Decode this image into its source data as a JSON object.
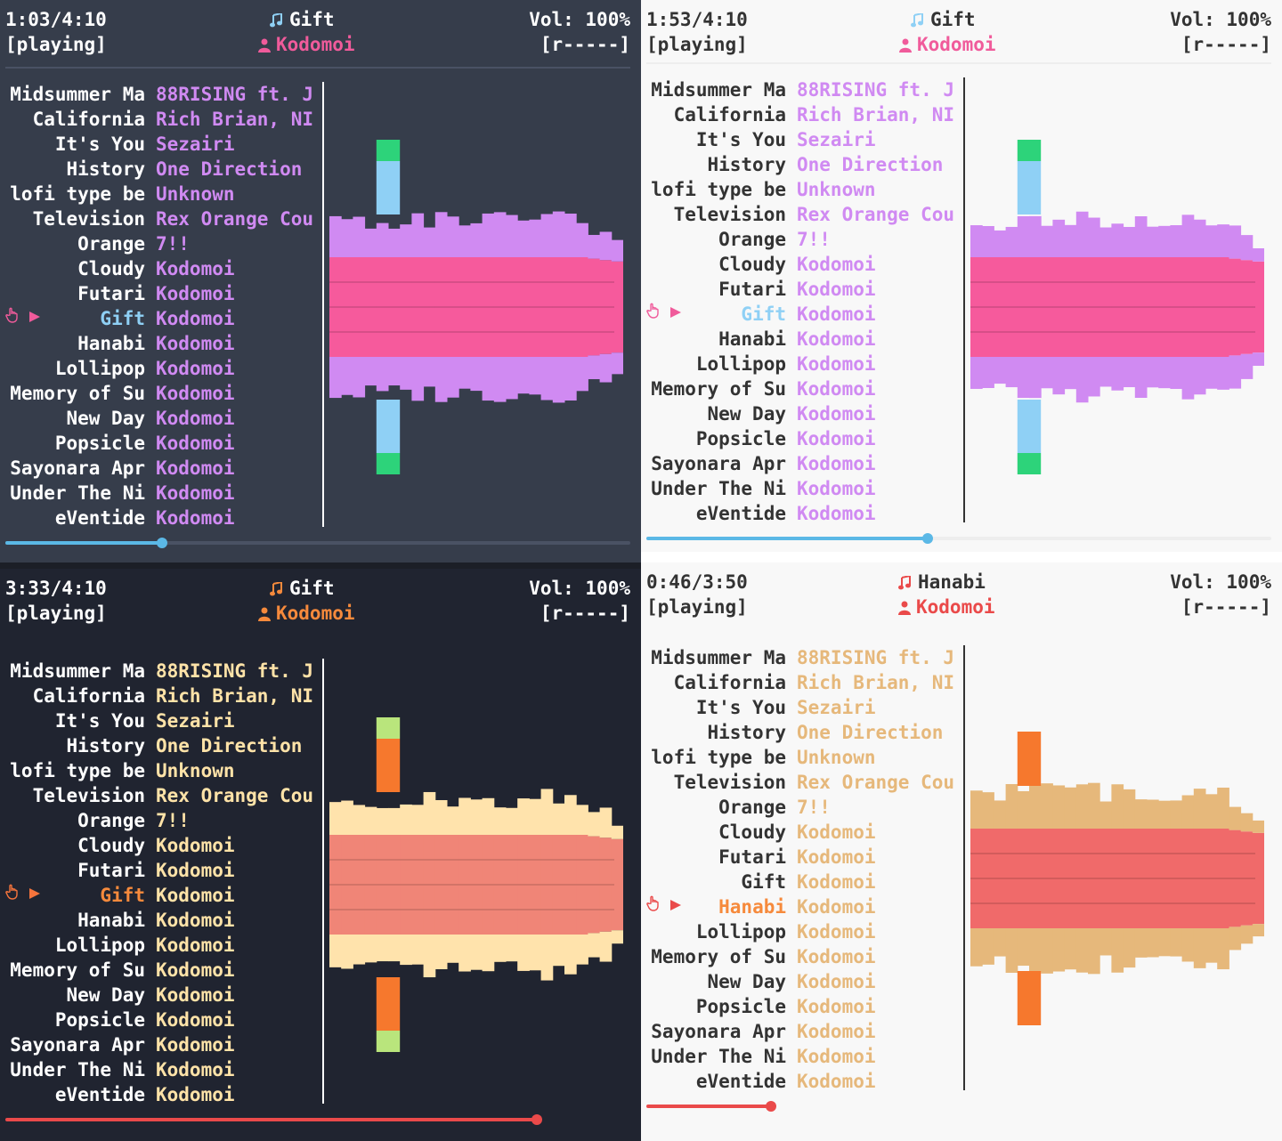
{
  "panels": [
    {
      "id": "tl",
      "theme": {
        "bg": "#363d4b",
        "text": "#ffffff",
        "accent": "#d08af2",
        "current": "#8fd0f5",
        "indicator": "#f05b9b",
        "note": "#8fd0f5",
        "artistHeader": "#f05b9b",
        "line": "#ffffff",
        "progress": "#5bb8e6",
        "track": "#4a5264",
        "divider": "#4a5264"
      },
      "header": {
        "time": "1:03/4:10",
        "state": "[playing]",
        "title": "Gift",
        "artist": "Kodomoi",
        "volume": "Vol: 100%",
        "mode": "[r-----]"
      },
      "progress": 0.25,
      "currentIndex": 9,
      "viz": {
        "mid": "#f65a9c",
        "outer": "#d08af2",
        "spike": "#8fd0f5",
        "peak": "#2dd37a"
      }
    },
    {
      "id": "tr",
      "theme": {
        "bg": "#f8f8f8",
        "text": "#333333",
        "accent": "#d08af2",
        "current": "#8fd0f5",
        "indicator": "#f05b9b",
        "note": "#8fd0f5",
        "artistHeader": "#f05b9b",
        "line": "#333333",
        "progress": "#5bb8e6",
        "track": "#eeeeee",
        "divider": "#eeeeee"
      },
      "header": {
        "time": "1:53/4:10",
        "state": "[playing]",
        "title": "Gift",
        "artist": "Kodomoi",
        "volume": "Vol: 100%",
        "mode": "[r-----]"
      },
      "progress": 0.45,
      "currentIndex": 9,
      "viz": {
        "mid": "#f65a9c",
        "outer": "#d08af2",
        "spike": "#8fd0f5",
        "peak": "#2dd37a"
      }
    },
    {
      "id": "bl",
      "theme": {
        "bg": "#202430",
        "text": "#ffffff",
        "accent": "#ffe3a8",
        "current": "#f68a3c",
        "indicator": "#f6743c",
        "note": "#f68a3c",
        "artistHeader": "#f68a3c",
        "line": "#ffffff",
        "progress": "#ea4a4a",
        "track": "#202430",
        "divider": "#202430"
      },
      "header": {
        "time": "3:33/4:10",
        "state": "[playing]",
        "title": "Gift",
        "artist": "Kodomoi",
        "volume": "Vol: 100%",
        "mode": "[r-----]"
      },
      "progress": 0.85,
      "currentIndex": 9,
      "viz": {
        "mid": "#f08577",
        "outer": "#ffe3ac",
        "spike": "#f6782d",
        "peak": "#b9e57c"
      }
    },
    {
      "id": "br",
      "theme": {
        "bg": "#f8f8f8",
        "text": "#333333",
        "accent": "#e6b87b",
        "current": "#f68a3c",
        "indicator": "#ea4a4a",
        "note": "#ea4a4a",
        "artistHeader": "#ea4a4a",
        "line": "#333333",
        "progress": "#ea4a4a",
        "track": "#f8f8f8",
        "divider": "#f8f8f8"
      },
      "header": {
        "time": "0:46/3:50",
        "state": "[playing]",
        "title": "Hanabi",
        "artist": "Kodomoi",
        "volume": "Vol: 100%",
        "mode": "[r-----]"
      },
      "progress": 0.2,
      "currentIndex": 10,
      "viz": {
        "mid": "#f06a6a",
        "outer": "#e6b87b",
        "spike": "#f6782d",
        "peak": "#f6782d"
      }
    }
  ],
  "playlist": [
    {
      "title": "Midsummer Ma",
      "artist": "88RISING ft. J"
    },
    {
      "title": "California",
      "artist": "Rich Brian, NI"
    },
    {
      "title": "It's You",
      "artist": "Sezairi"
    },
    {
      "title": "History",
      "artist": "One Direction"
    },
    {
      "title": "lofi type be",
      "artist": "Unknown"
    },
    {
      "title": "Television",
      "artist": "Rex Orange Cou"
    },
    {
      "title": "Orange",
      "artist": "7!!"
    },
    {
      "title": "Cloudy",
      "artist": "Kodomoi"
    },
    {
      "title": "Futari",
      "artist": "Kodomoi"
    },
    {
      "title": "Gift",
      "artist": "Kodomoi"
    },
    {
      "title": "Hanabi",
      "artist": "Kodomoi"
    },
    {
      "title": "Lollipop",
      "artist": "Kodomoi"
    },
    {
      "title": "Memory of Su",
      "artist": "Kodomoi"
    },
    {
      "title": "New Day",
      "artist": "Kodomoi"
    },
    {
      "title": "Popsicle",
      "artist": "Kodomoi"
    },
    {
      "title": "Sayonara Apr",
      "artist": "Kodomoi"
    },
    {
      "title": "Under The Ni",
      "artist": "Kodomoi"
    },
    {
      "title": "eVentide",
      "artist": "Kodomoi"
    }
  ],
  "icons": {
    "note": "music-note-icon",
    "person": "person-icon",
    "hand": "pointing-hand-icon",
    "play": "play-triangle-icon"
  }
}
